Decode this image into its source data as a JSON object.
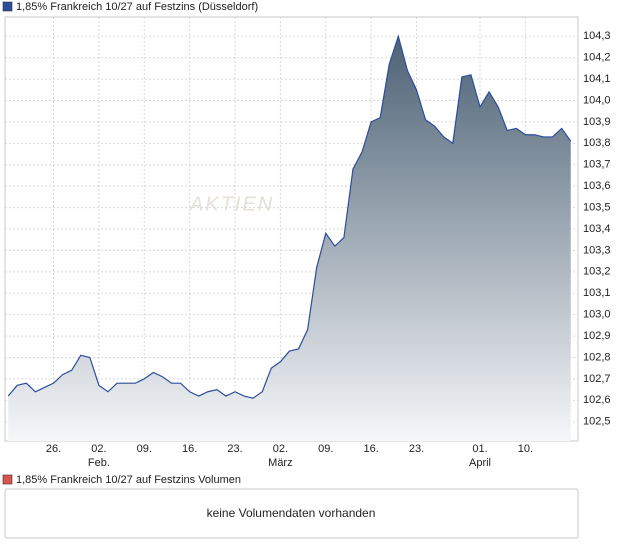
{
  "chart_data": {
    "type": "area",
    "series": [
      {
        "name": "1,85% Frankreich 10/27 auf Festzins (Düsseldorf)",
        "color": "#2b4d9c",
        "values": [
          102.62,
          102.67,
          102.68,
          102.64,
          102.66,
          102.68,
          102.72,
          102.74,
          102.81,
          102.8,
          102.67,
          102.64,
          102.68,
          102.68,
          102.68,
          102.7,
          102.73,
          102.71,
          102.68,
          102.68,
          102.64,
          102.62,
          102.64,
          102.65,
          102.62,
          102.64,
          102.62,
          102.61,
          102.64,
          102.75,
          102.78,
          102.83,
          102.84,
          102.93,
          103.22,
          103.38,
          103.32,
          103.36,
          103.68,
          103.76,
          103.9,
          103.92,
          104.17,
          104.3,
          104.14,
          104.05,
          103.91,
          103.88,
          103.83,
          103.8,
          104.11,
          104.12,
          103.97,
          104.04,
          103.97,
          103.86,
          103.87,
          103.84,
          103.84,
          103.83,
          103.83,
          103.87,
          103.81
        ]
      }
    ],
    "fill_gradient": [
      "#4d6275",
      "#f6f7f9"
    ],
    "xlim": [
      -0.35,
      62.8
    ],
    "xticks": [
      {
        "value": 5,
        "label": "26."
      },
      {
        "value": 10,
        "label": "02."
      },
      {
        "value": 15,
        "label": "09."
      },
      {
        "value": 20,
        "label": "16."
      },
      {
        "value": 25,
        "label": "23."
      },
      {
        "value": 30,
        "label": "02."
      },
      {
        "value": 35,
        "label": "09."
      },
      {
        "value": 40,
        "label": "16."
      },
      {
        "value": 45,
        "label": "23."
      },
      {
        "value": 52,
        "label": "01."
      },
      {
        "value": 57,
        "label": "10."
      }
    ],
    "month_labels": [
      {
        "value": 10,
        "label": "Feb."
      },
      {
        "value": 30,
        "label": "März"
      },
      {
        "value": 52,
        "label": "April"
      }
    ],
    "ylim": [
      102.41,
      104.39
    ],
    "yticks": [
      {
        "value": 102.5,
        "label": "102,5"
      },
      {
        "value": 102.6,
        "label": "102,6"
      },
      {
        "value": 102.7,
        "label": "102,7"
      },
      {
        "value": 102.8,
        "label": "102,8"
      },
      {
        "value": 102.9,
        "label": "102,9"
      },
      {
        "value": 103.0,
        "label": "103,0"
      },
      {
        "value": 103.1,
        "label": "103,1"
      },
      {
        "value": 103.2,
        "label": "103,2"
      },
      {
        "value": 103.3,
        "label": "103,3"
      },
      {
        "value": 103.4,
        "label": "103,4"
      },
      {
        "value": 103.5,
        "label": "103,5"
      },
      {
        "value": 103.6,
        "label": "103,6"
      },
      {
        "value": 103.7,
        "label": "103,7"
      },
      {
        "value": 103.8,
        "label": "103,8"
      },
      {
        "value": 103.9,
        "label": "103,9"
      },
      {
        "value": 104.0,
        "label": "104,0"
      },
      {
        "value": 104.1,
        "label": "104,1"
      },
      {
        "value": 104.2,
        "label": "104,2"
      },
      {
        "value": 104.3,
        "label": "104,3"
      }
    ],
    "grid": true,
    "watermark": "AKTIEN"
  },
  "volume_panel": {
    "legend": "1,85% Frankreich 10/27 auf Festzins Volumen",
    "color": "#d9534f",
    "message": "keine Volumendaten vorhanden"
  }
}
